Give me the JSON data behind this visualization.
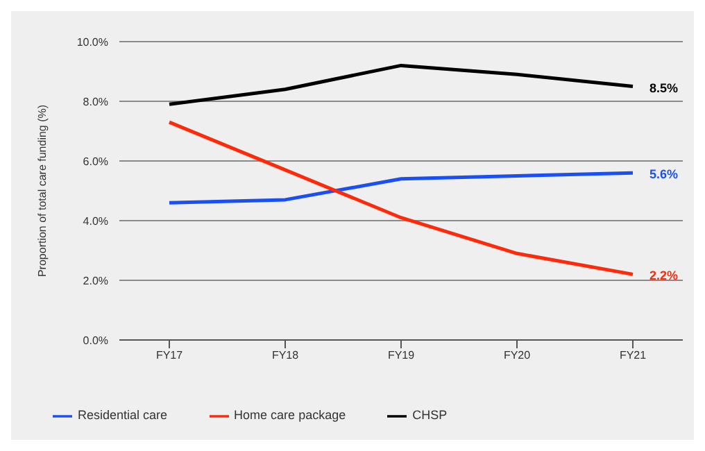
{
  "chart_data": {
    "type": "line",
    "ylabel": "Proportion of total care funding (%)",
    "categories": [
      "FY17",
      "FY18",
      "FY19",
      "FY20",
      "FY21"
    ],
    "series": [
      {
        "name": "Residential care",
        "color": "#1a4ff5",
        "values": [
          4.6,
          4.7,
          5.4,
          5.5,
          5.6
        ],
        "value_labels": [
          null,
          null,
          null,
          null,
          "5.6%"
        ]
      },
      {
        "name": "Home care package",
        "color": "#ff2a0a",
        "values": [
          7.3,
          5.7,
          4.1,
          2.9,
          2.2
        ],
        "value_labels": [
          null,
          null,
          null,
          null,
          "2.2%"
        ]
      },
      {
        "name": "CHSP",
        "color": "#000000",
        "values": [
          7.9,
          8.4,
          9.2,
          8.9,
          8.5
        ],
        "value_labels": [
          null,
          null,
          null,
          null,
          "8.5%"
        ]
      }
    ],
    "ylim": [
      0,
      10
    ],
    "yticks": [
      {
        "value": 0,
        "label": "0.0%"
      },
      {
        "value": 2,
        "label": "2.0%"
      },
      {
        "value": 4,
        "label": "4.0%"
      },
      {
        "value": 6,
        "label": "6.0%"
      },
      {
        "value": 8,
        "label": "8.0%"
      },
      {
        "value": 10,
        "label": "10.0%"
      }
    ],
    "grid": "y",
    "legend": "bottom left",
    "marker": "none",
    "line_style": "solid"
  }
}
